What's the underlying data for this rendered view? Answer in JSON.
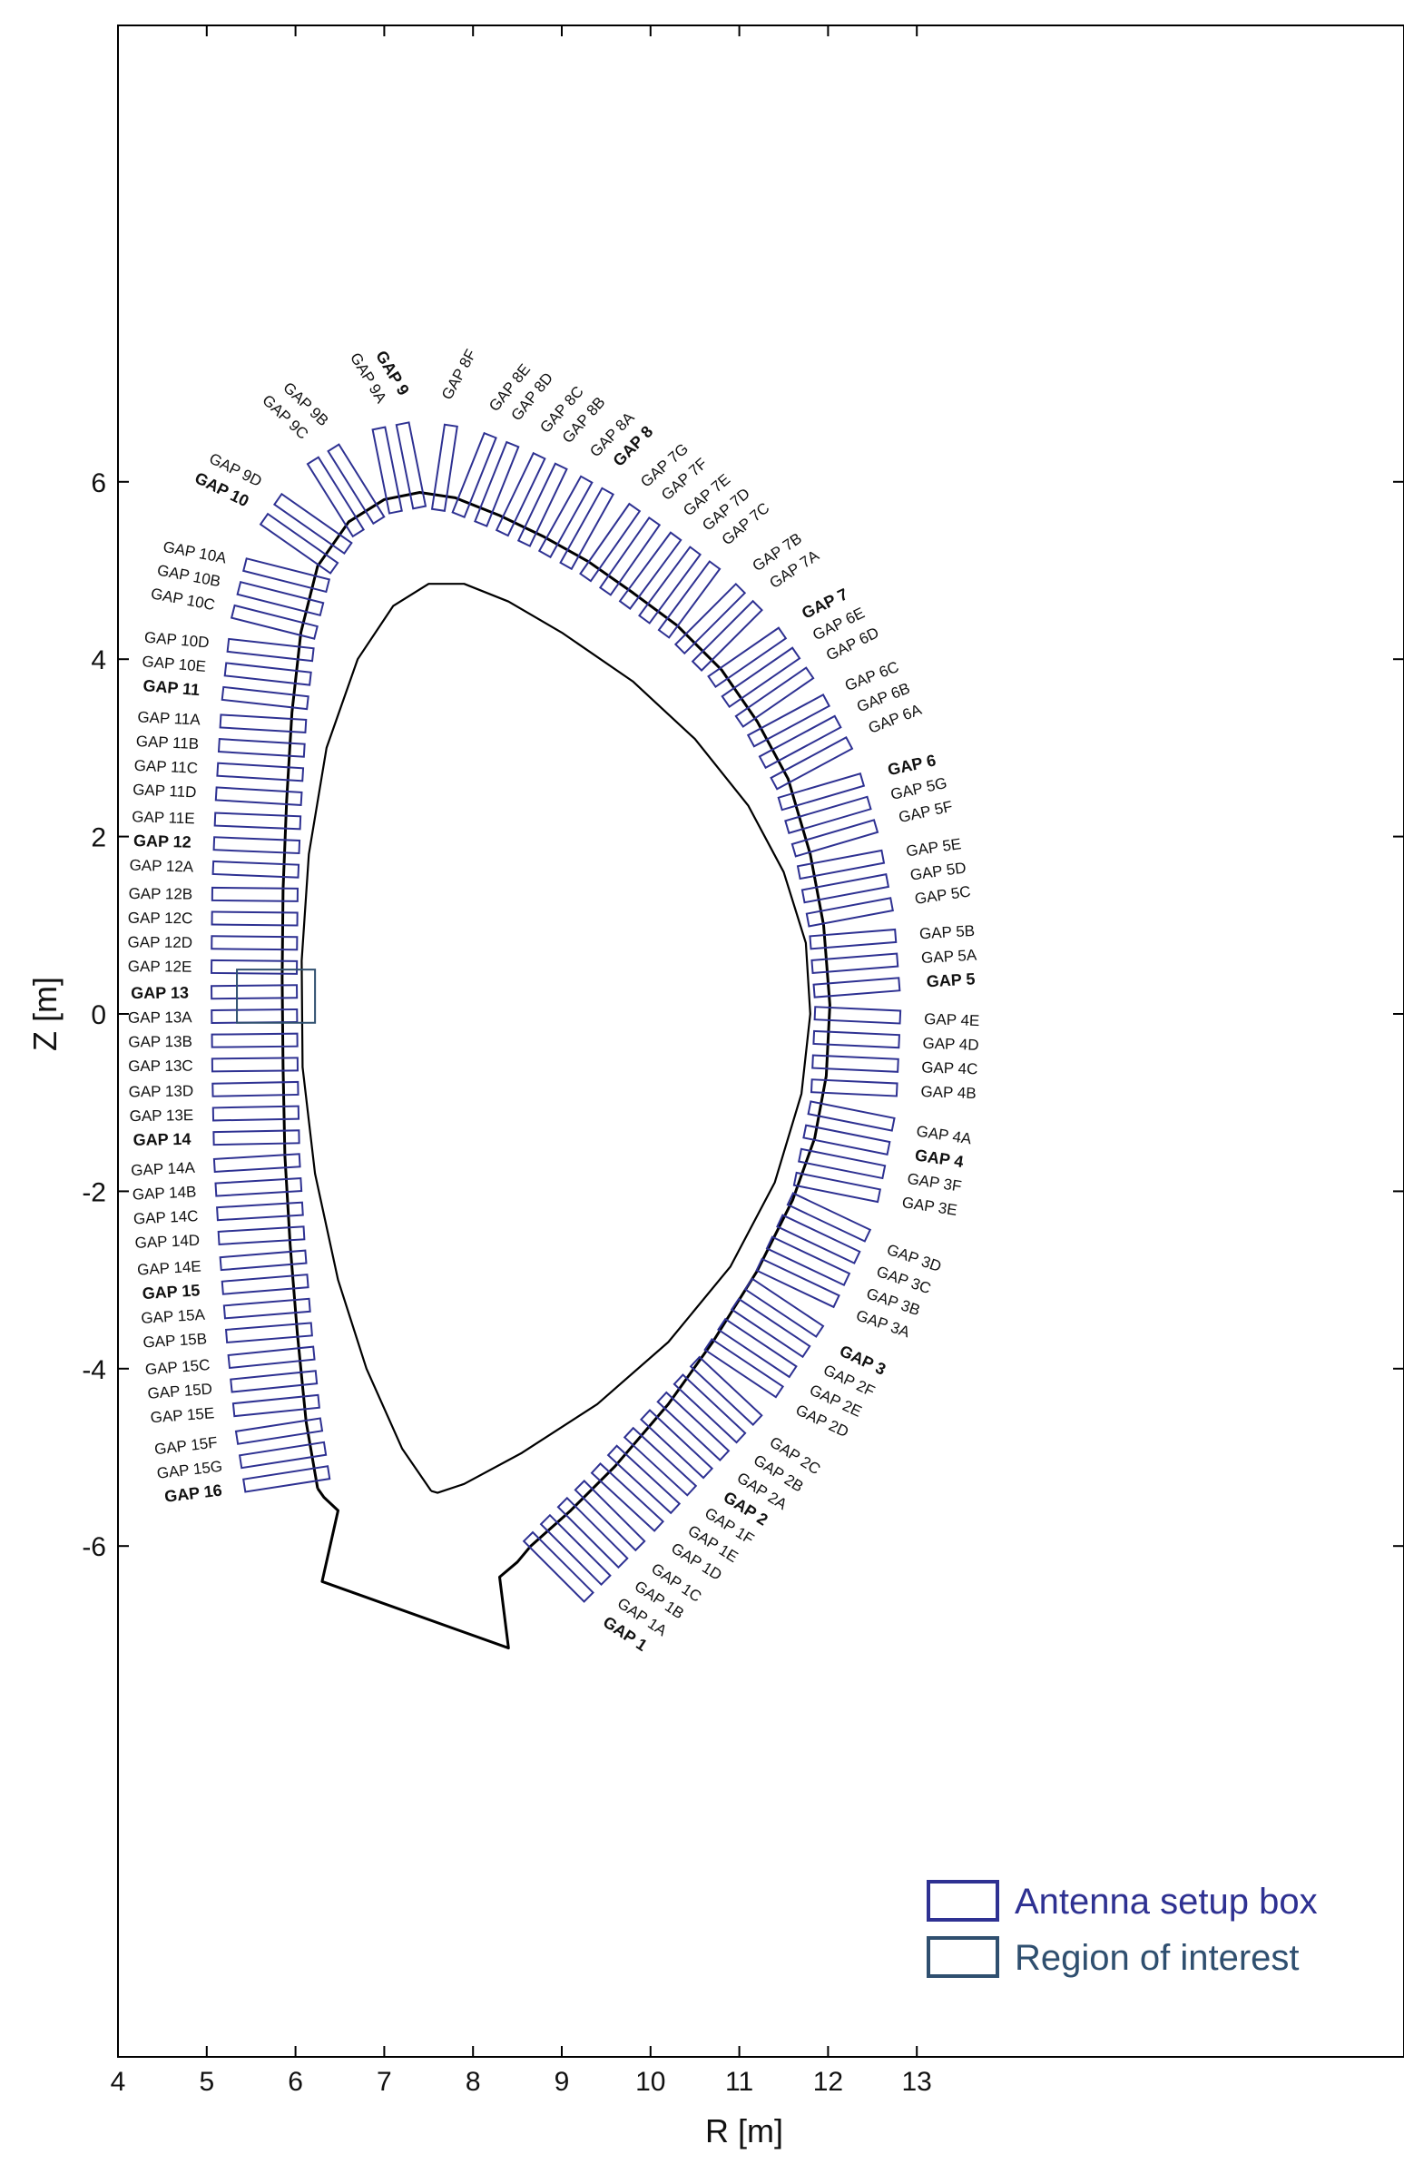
{
  "chart_data": {
    "type": "line",
    "title": "",
    "xlabel": "R [m]",
    "ylabel": "Z [m]",
    "xlim": [
      4,
      13.5
    ],
    "ylim": [
      -7.7,
      7.3
    ],
    "xticks": [
      4,
      5,
      6,
      7,
      8,
      9,
      10,
      11,
      12,
      13
    ],
    "yticks": [
      -6,
      -4,
      -2,
      0,
      2,
      4,
      6
    ],
    "grid": false,
    "legend_position": "bottom-right",
    "legend": [
      {
        "label": "Antenna setup box",
        "color": "#2e3192"
      },
      {
        "label": "Region of interest",
        "color": "#2f4f6f"
      }
    ],
    "colors": {
      "antenna": "#2e3192",
      "roi": "#2f4f6f",
      "wall": "#000000",
      "plasma": "#000000"
    },
    "series": [
      {
        "key": "first_wall",
        "points": [
          [
            6.25,
            -5.35
          ],
          [
            6.12,
            -4.6
          ],
          [
            6.02,
            -3.6
          ],
          [
            5.94,
            -2.6
          ],
          [
            5.88,
            -1.6
          ],
          [
            5.86,
            -0.6
          ],
          [
            5.85,
            0.4
          ],
          [
            5.86,
            1.4
          ],
          [
            5.9,
            2.4
          ],
          [
            5.96,
            3.4
          ],
          [
            6.06,
            4.3
          ],
          [
            6.25,
            5.05
          ],
          [
            6.6,
            5.55
          ],
          [
            7.0,
            5.8
          ],
          [
            7.4,
            5.88
          ],
          [
            7.8,
            5.82
          ],
          [
            8.3,
            5.62
          ],
          [
            8.8,
            5.38
          ],
          [
            9.3,
            5.1
          ],
          [
            9.8,
            4.75
          ],
          [
            10.3,
            4.38
          ],
          [
            10.8,
            3.88
          ],
          [
            11.2,
            3.3
          ],
          [
            11.55,
            2.65
          ],
          [
            11.8,
            1.8
          ],
          [
            11.95,
            1.0
          ],
          [
            12.02,
            0.1
          ],
          [
            11.98,
            -0.7
          ],
          [
            11.85,
            -1.4
          ],
          [
            11.6,
            -2.1
          ],
          [
            11.2,
            -2.9
          ],
          [
            10.7,
            -3.7
          ],
          [
            10.2,
            -4.4
          ],
          [
            9.6,
            -5.1
          ],
          [
            9.1,
            -5.6
          ],
          [
            8.65,
            -6.0
          ],
          [
            8.5,
            -6.18
          ],
          [
            8.3,
            -6.35
          ],
          [
            8.4,
            -7.15
          ],
          [
            6.3,
            -6.4
          ],
          [
            6.48,
            -5.6
          ],
          [
            6.32,
            -5.45
          ],
          [
            6.25,
            -5.35
          ]
        ]
      },
      {
        "key": "plasma_boundary",
        "points": [
          [
            7.53,
            -5.38
          ],
          [
            7.2,
            -4.9
          ],
          [
            6.8,
            -4.0
          ],
          [
            6.48,
            -3.0
          ],
          [
            6.22,
            -1.8
          ],
          [
            6.08,
            -0.6
          ],
          [
            6.07,
            0.6
          ],
          [
            6.15,
            1.8
          ],
          [
            6.35,
            3.0
          ],
          [
            6.7,
            4.0
          ],
          [
            7.1,
            4.6
          ],
          [
            7.5,
            4.85
          ],
          [
            7.9,
            4.85
          ],
          [
            8.4,
            4.65
          ],
          [
            9.0,
            4.3
          ],
          [
            9.8,
            3.75
          ],
          [
            10.5,
            3.1
          ],
          [
            11.1,
            2.35
          ],
          [
            11.5,
            1.6
          ],
          [
            11.75,
            0.8
          ],
          [
            11.8,
            0.0
          ],
          [
            11.7,
            -0.9
          ],
          [
            11.4,
            -1.9
          ],
          [
            10.9,
            -2.85
          ],
          [
            10.2,
            -3.7
          ],
          [
            9.4,
            -4.4
          ],
          [
            8.55,
            -4.95
          ],
          [
            7.9,
            -5.3
          ],
          [
            7.6,
            -5.4
          ],
          [
            7.53,
            -5.38
          ]
        ]
      }
    ],
    "region_of_interest": {
      "r": [
        5.34,
        6.22
      ],
      "z": [
        -0.1,
        0.5
      ]
    },
    "gaps": [
      {
        "label": "GAP 1",
        "bold": true
      },
      {
        "label": "GAP 1A",
        "bold": false
      },
      {
        "label": "GAP 1B",
        "bold": false
      },
      {
        "label": "GAP 1C",
        "bold": false
      },
      {
        "label": "GAP 1D",
        "bold": false
      },
      {
        "label": "GAP 1E",
        "bold": false
      },
      {
        "label": "GAP 1F",
        "bold": false
      },
      {
        "label": "GAP 2",
        "bold": true
      },
      {
        "label": "GAP 2A",
        "bold": false
      },
      {
        "label": "GAP 2B",
        "bold": false
      },
      {
        "label": "GAP 2C",
        "bold": false
      },
      {
        "label": "GAP 2D",
        "bold": false
      },
      {
        "label": "GAP 2E",
        "bold": false
      },
      {
        "label": "GAP 2F",
        "bold": false
      },
      {
        "label": "GAP 3",
        "bold": true
      },
      {
        "label": "GAP 3A",
        "bold": false
      },
      {
        "label": "GAP 3B",
        "bold": false
      },
      {
        "label": "GAP 3C",
        "bold": false
      },
      {
        "label": "GAP 3D",
        "bold": false
      },
      {
        "label": "GAP 3E",
        "bold": false
      },
      {
        "label": "GAP 3F",
        "bold": false
      },
      {
        "label": "GAP 4",
        "bold": true
      },
      {
        "label": "GAP 4A",
        "bold": false
      },
      {
        "label": "GAP 4B",
        "bold": false
      },
      {
        "label": "GAP 4C",
        "bold": false
      },
      {
        "label": "GAP 4D",
        "bold": false
      },
      {
        "label": "GAP 4E",
        "bold": false
      },
      {
        "label": "GAP 5",
        "bold": true
      },
      {
        "label": "GAP 5A",
        "bold": false
      },
      {
        "label": "GAP 5B",
        "bold": false
      },
      {
        "label": "GAP 5C",
        "bold": false
      },
      {
        "label": "GAP 5D",
        "bold": false
      },
      {
        "label": "GAP 5E",
        "bold": false
      },
      {
        "label": "GAP 5F",
        "bold": false
      },
      {
        "label": "GAP 5G",
        "bold": false
      },
      {
        "label": "GAP 6",
        "bold": true
      },
      {
        "label": "GAP 6A",
        "bold": false
      },
      {
        "label": "GAP 6B",
        "bold": false
      },
      {
        "label": "GAP 6C",
        "bold": false
      },
      {
        "label": "GAP 6D",
        "bold": false
      },
      {
        "label": "GAP 6E",
        "bold": false
      },
      {
        "label": "GAP 7",
        "bold": true
      },
      {
        "label": "GAP 7A",
        "bold": false
      },
      {
        "label": "GAP 7B",
        "bold": false
      },
      {
        "label": "GAP 7C",
        "bold": false
      },
      {
        "label": "GAP 7D",
        "bold": false
      },
      {
        "label": "GAP 7E",
        "bold": false
      },
      {
        "label": "GAP 7F",
        "bold": false
      },
      {
        "label": "GAP 7G",
        "bold": false
      },
      {
        "label": "GAP 8",
        "bold": true
      },
      {
        "label": "GAP 8A",
        "bold": false
      },
      {
        "label": "GAP 8B",
        "bold": false
      },
      {
        "label": "GAP 8C",
        "bold": false
      },
      {
        "label": "GAP 8D",
        "bold": false
      },
      {
        "label": "GAP 8E",
        "bold": false
      },
      {
        "label": "GAP 8F",
        "bold": false
      },
      {
        "label": "GAP 9",
        "bold": true
      },
      {
        "label": "GAP 9A",
        "bold": false
      },
      {
        "label": "GAP 9B",
        "bold": false
      },
      {
        "label": "GAP 9C",
        "bold": false
      },
      {
        "label": "GAP 9D",
        "bold": false
      },
      {
        "label": "GAP 10",
        "bold": true
      },
      {
        "label": "GAP 10A",
        "bold": false
      },
      {
        "label": "GAP 10B",
        "bold": false
      },
      {
        "label": "GAP 10C",
        "bold": false
      },
      {
        "label": "GAP 10D",
        "bold": false
      },
      {
        "label": "GAP 10E",
        "bold": false
      },
      {
        "label": "GAP 11",
        "bold": true
      },
      {
        "label": "GAP 11A",
        "bold": false
      },
      {
        "label": "GAP 11B",
        "bold": false
      },
      {
        "label": "GAP 11C",
        "bold": false
      },
      {
        "label": "GAP 11D",
        "bold": false
      },
      {
        "label": "GAP 11E",
        "bold": false
      },
      {
        "label": "GAP 12",
        "bold": true
      },
      {
        "label": "GAP 12A",
        "bold": false
      },
      {
        "label": "GAP 12B",
        "bold": false
      },
      {
        "label": "GAP 12C",
        "bold": false
      },
      {
        "label": "GAP 12D",
        "bold": false
      },
      {
        "label": "GAP 12E",
        "bold": false
      },
      {
        "label": "GAP 13",
        "bold": true
      },
      {
        "label": "GAP 13A",
        "bold": false
      },
      {
        "label": "GAP 13B",
        "bold": false
      },
      {
        "label": "GAP 13C",
        "bold": false
      },
      {
        "label": "GAP 13D",
        "bold": false
      },
      {
        "label": "GAP 13E",
        "bold": false
      },
      {
        "label": "GAP 14",
        "bold": true
      },
      {
        "label": "GAP 14A",
        "bold": false
      },
      {
        "label": "GAP 14B",
        "bold": false
      },
      {
        "label": "GAP 14C",
        "bold": false
      },
      {
        "label": "GAP 14D",
        "bold": false
      },
      {
        "label": "GAP 14E",
        "bold": false
      },
      {
        "label": "GAP 15",
        "bold": true
      },
      {
        "label": "GAP 15A",
        "bold": false
      },
      {
        "label": "GAP 15B",
        "bold": false
      },
      {
        "label": "GAP 15C",
        "bold": false
      },
      {
        "label": "GAP 15D",
        "bold": false
      },
      {
        "label": "GAP 15E",
        "bold": false
      },
      {
        "label": "GAP 15F",
        "bold": false
      },
      {
        "label": "GAP 15G",
        "bold": false
      },
      {
        "label": "GAP 16",
        "bold": true
      }
    ]
  }
}
